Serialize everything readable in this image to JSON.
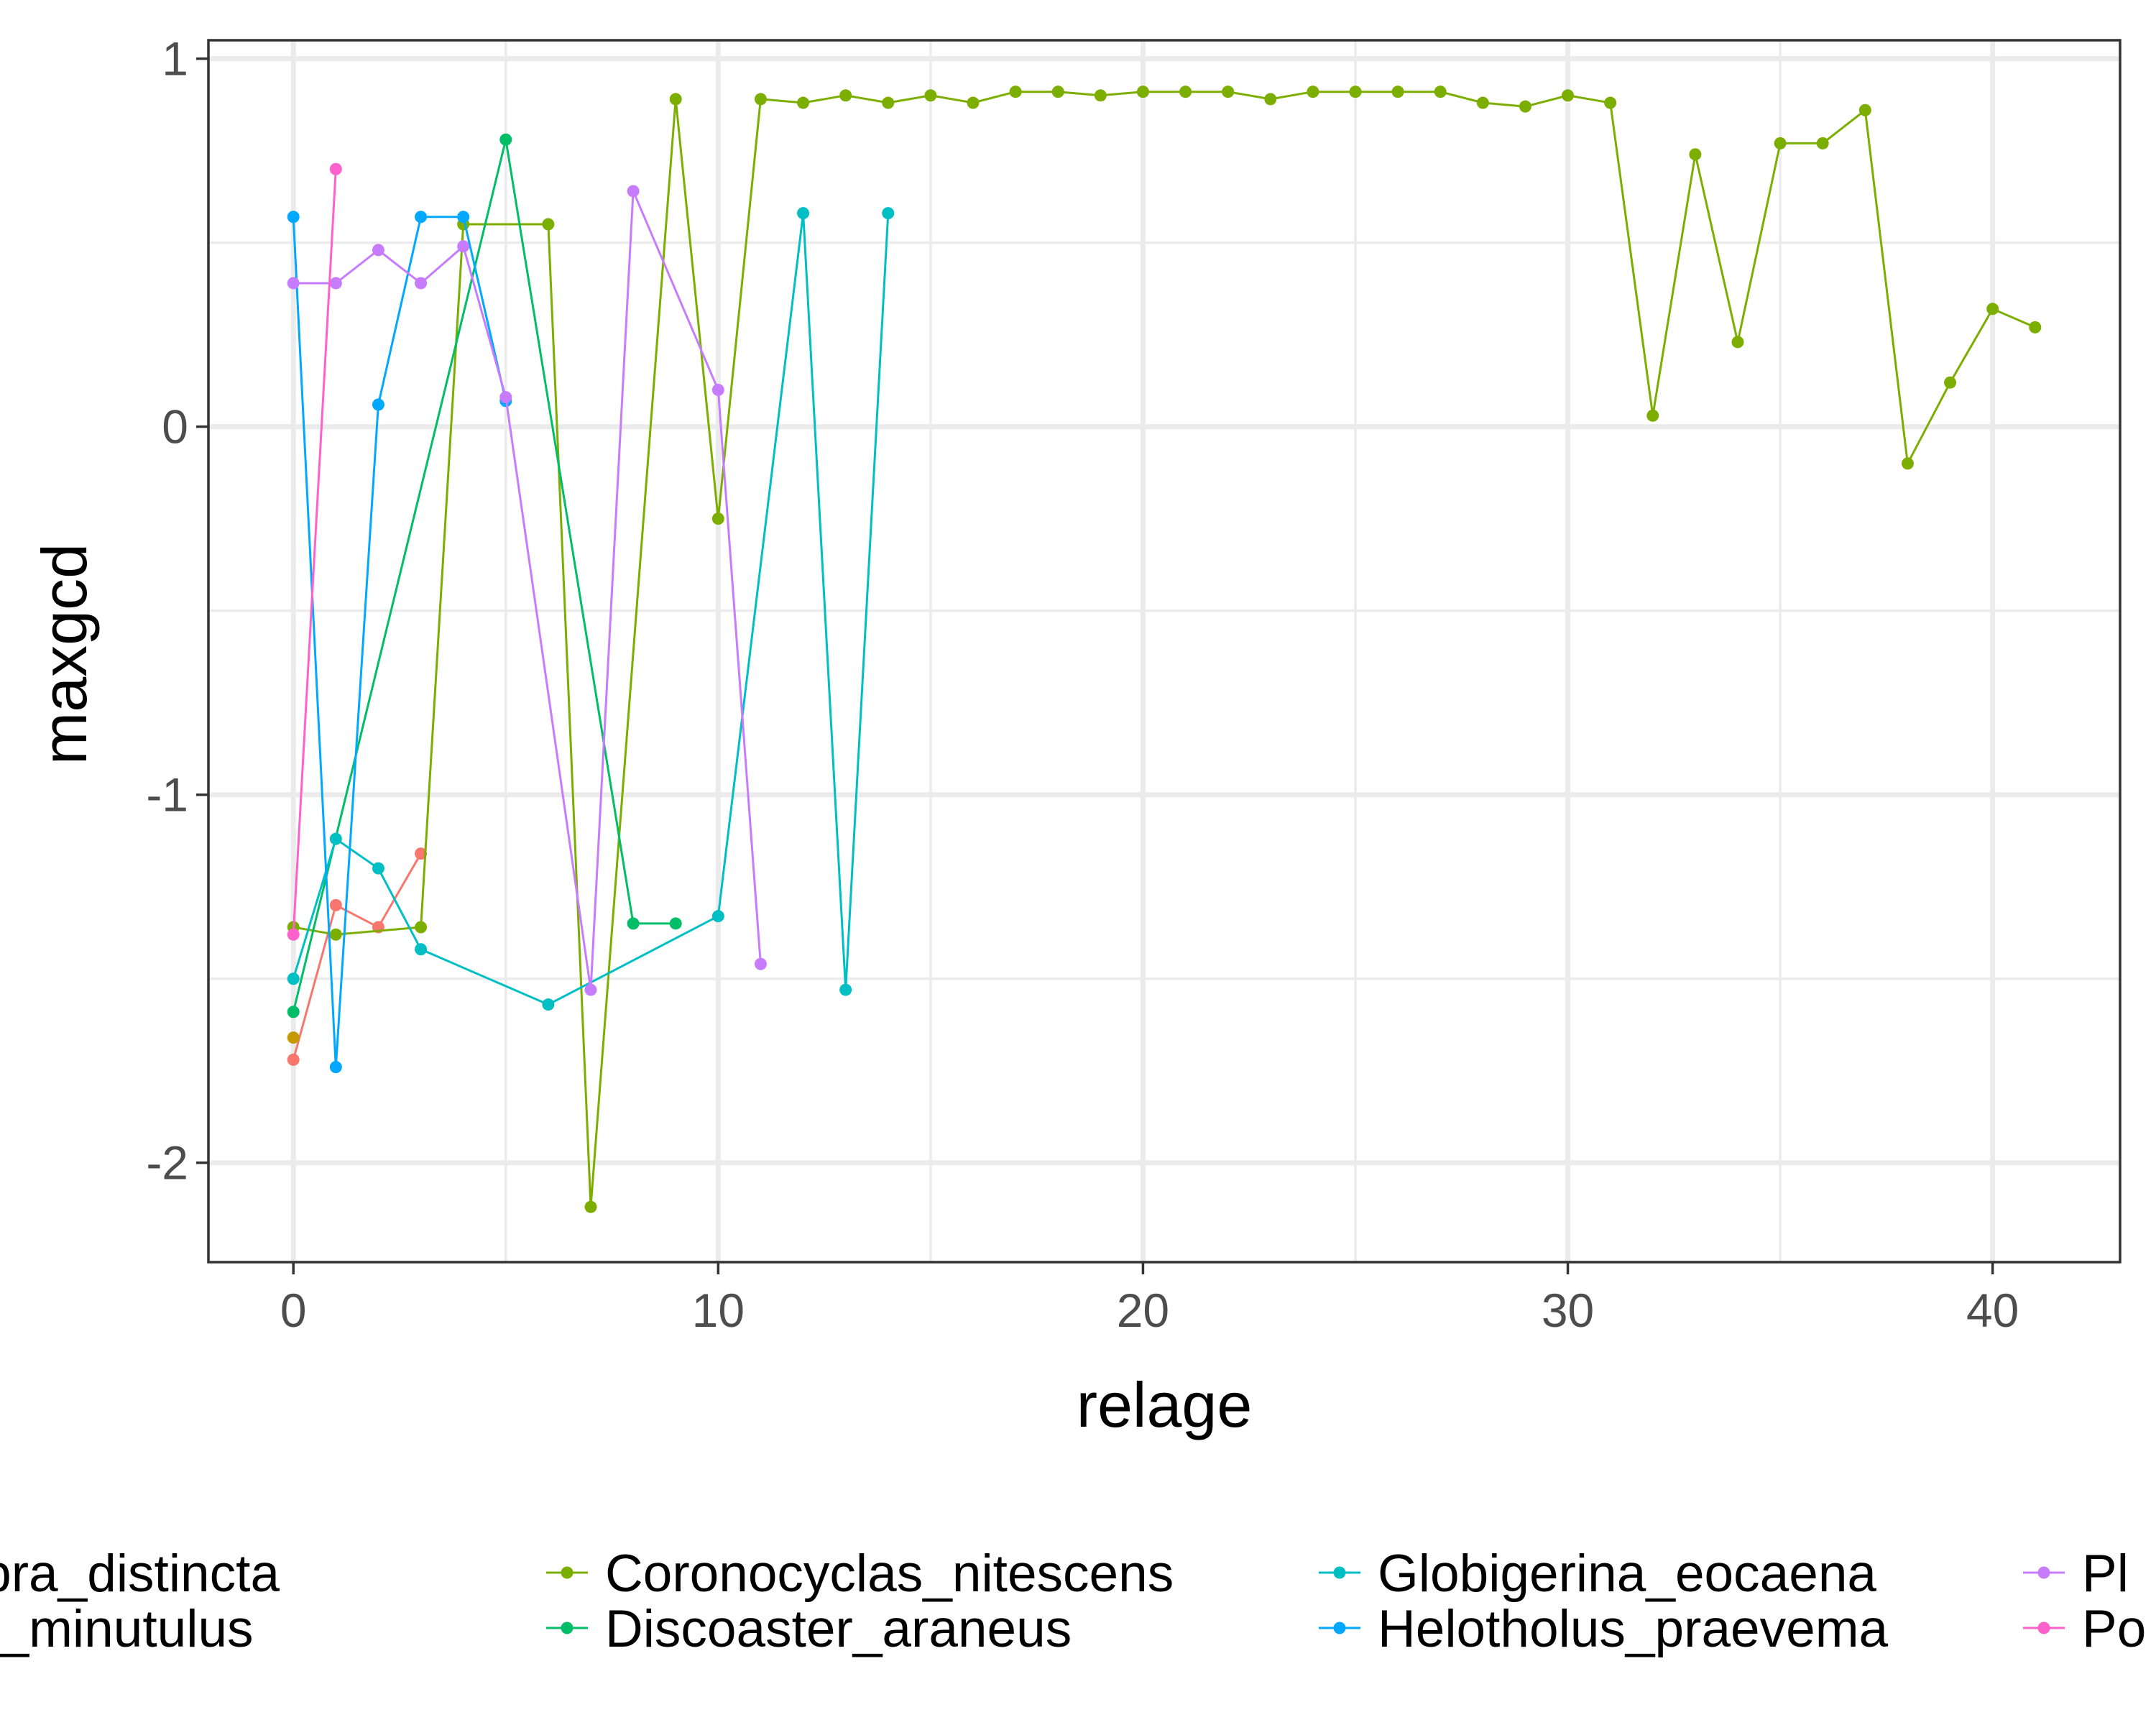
{
  "chart_data": {
    "type": "line",
    "xlabel": "relage",
    "ylabel": "maxgcd",
    "xlim": [
      -2,
      43
    ],
    "ylim": [
      -2.27,
      1.05
    ],
    "x_ticks": [
      0,
      10,
      20,
      30,
      40
    ],
    "y_ticks": [
      1,
      0,
      -1,
      -2
    ],
    "x_tick_labels": [
      "0",
      "10",
      "20",
      "30",
      "40"
    ],
    "y_tick_labels": [
      "1",
      "0",
      "-1",
      "-2"
    ],
    "grid": true,
    "legend_position": "bottom",
    "legend_visible_labels": [
      "erolampra_distincta",
      "colithus_minutulus",
      "Coronocyclas_nitescens",
      "Discoaster_araneus",
      "Globigerina_eocaena",
      "Helotholus_praevema",
      "Pl",
      "Po"
    ],
    "series": [
      {
        "name": "erolampra_distincta",
        "color": "#F8766D",
        "points": [
          [
            0,
            -1.72
          ],
          [
            1,
            -1.3
          ],
          [
            2,
            -1.36
          ],
          [
            3,
            -1.16
          ]
        ]
      },
      {
        "name": "colithus_minutulus",
        "color": "#C49A00",
        "points": [
          [
            0,
            -1.66
          ]
        ]
      },
      {
        "name": "Coronocyclas_nitescens",
        "color": "#7CAE00",
        "points": [
          [
            0,
            -1.36
          ],
          [
            1,
            -1.38
          ],
          [
            3,
            -1.36
          ],
          [
            4,
            0.55
          ],
          [
            6,
            0.55
          ],
          [
            7,
            -2.12
          ],
          [
            9,
            0.89
          ],
          [
            10,
            -0.25
          ],
          [
            11,
            0.89
          ],
          [
            12,
            0.88
          ],
          [
            13,
            0.9
          ],
          [
            14,
            0.88
          ],
          [
            15,
            0.9
          ],
          [
            16,
            0.88
          ],
          [
            17,
            0.91
          ],
          [
            18,
            0.91
          ],
          [
            19,
            0.9
          ],
          [
            20,
            0.91
          ],
          [
            21,
            0.91
          ],
          [
            22,
            0.91
          ],
          [
            23,
            0.89
          ],
          [
            24,
            0.91
          ],
          [
            25,
            0.91
          ],
          [
            26,
            0.91
          ],
          [
            27,
            0.91
          ],
          [
            28,
            0.88
          ],
          [
            29,
            0.87
          ],
          [
            30,
            0.9
          ],
          [
            31,
            0.88
          ],
          [
            32,
            0.03
          ],
          [
            33,
            0.74
          ],
          [
            34,
            0.23
          ],
          [
            35,
            0.77
          ],
          [
            36,
            0.77
          ],
          [
            37,
            0.86
          ],
          [
            38,
            -0.1
          ],
          [
            39,
            0.12
          ],
          [
            40,
            0.32
          ],
          [
            41,
            0.27
          ]
        ]
      },
      {
        "name": "Discoaster_araneus",
        "color": "#00BE67",
        "points": [
          [
            0,
            -1.59
          ],
          [
            5,
            0.78
          ],
          [
            8,
            -1.35
          ],
          [
            9,
            -1.35
          ]
        ]
      },
      {
        "name": "Globigerina_eocaena",
        "color": "#00BFC4",
        "points": [
          [
            0,
            -1.5
          ],
          [
            1,
            -1.12
          ],
          [
            2,
            -1.2
          ],
          [
            3,
            -1.42
          ],
          [
            6,
            -1.57
          ],
          [
            10,
            -1.33
          ],
          [
            12,
            0.58
          ],
          [
            13,
            -1.53
          ],
          [
            14,
            0.58
          ]
        ]
      },
      {
        "name": "Helotholus_praevema",
        "color": "#00A9FF",
        "points": [
          [
            0,
            0.57
          ],
          [
            1,
            -1.74
          ],
          [
            2,
            0.06
          ],
          [
            3,
            0.57
          ],
          [
            4,
            0.57
          ],
          [
            5,
            0.07
          ]
        ]
      },
      {
        "name": "Pl",
        "color": "#C77CFF",
        "points": [
          [
            0,
            0.39
          ],
          [
            1,
            0.39
          ],
          [
            2,
            0.48
          ],
          [
            3,
            0.39
          ],
          [
            4,
            0.49
          ],
          [
            5,
            0.08
          ],
          [
            7,
            -1.53
          ],
          [
            8,
            0.64
          ],
          [
            10,
            0.1
          ],
          [
            11,
            -1.46
          ]
        ]
      },
      {
        "name": "Po",
        "color": "#FF61CC",
        "points": [
          [
            0,
            -1.38
          ],
          [
            1,
            0.7
          ]
        ]
      }
    ]
  }
}
